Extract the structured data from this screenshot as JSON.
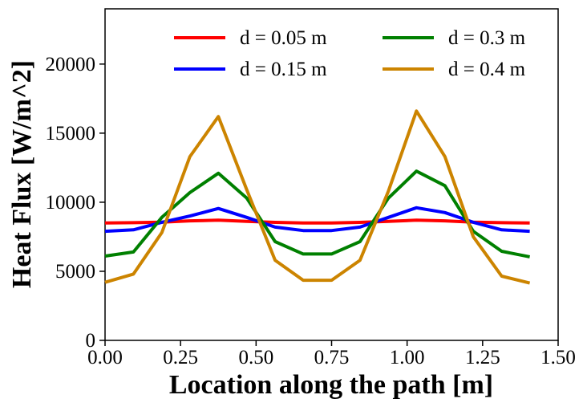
{
  "chart_data": {
    "type": "line",
    "xlabel": "Location along the path [m]",
    "ylabel": "Heat Flux [W/m^2]",
    "xlim": [
      0,
      1.5
    ],
    "ylim": [
      0,
      24000
    ],
    "x_ticks": [
      "0.00",
      "0.25",
      "0.50",
      "0.75",
      "1.00",
      "1.25",
      "1.50"
    ],
    "y_ticks": [
      "0",
      "5000",
      "10000",
      "15000",
      "20000"
    ],
    "grid": false,
    "legend_position": "top-right",
    "legend_columns": 2,
    "x": [
      0.0,
      0.094,
      0.188,
      0.281,
      0.375,
      0.469,
      0.563,
      0.656,
      0.75,
      0.844,
      0.938,
      1.031,
      1.125,
      1.219,
      1.313,
      1.406
    ],
    "series": [
      {
        "name": "d = 0.05 m",
        "color": "#ff0000",
        "values": [
          8500,
          8520,
          8560,
          8650,
          8700,
          8620,
          8540,
          8500,
          8500,
          8540,
          8620,
          8700,
          8650,
          8560,
          8520,
          8500
        ]
      },
      {
        "name": "d = 0.15 m",
        "color": "#0000ff",
        "values": [
          7900,
          8000,
          8550,
          9000,
          9550,
          8900,
          8200,
          7950,
          7950,
          8200,
          8900,
          9600,
          9250,
          8550,
          8000,
          7900
        ]
      },
      {
        "name": "d = 0.3 m",
        "color": "#008000",
        "values": [
          6100,
          6400,
          8900,
          10700,
          12100,
          10300,
          7150,
          6250,
          6250,
          7150,
          10300,
          12250,
          11200,
          7900,
          6450,
          6050
        ]
      },
      {
        "name": "d = 0.4 m",
        "color": "#cc8400",
        "values": [
          4200,
          4800,
          7800,
          13300,
          16200,
          10900,
          5800,
          4350,
          4350,
          5800,
          10800,
          16600,
          13300,
          7500,
          4650,
          4150
        ]
      }
    ]
  }
}
